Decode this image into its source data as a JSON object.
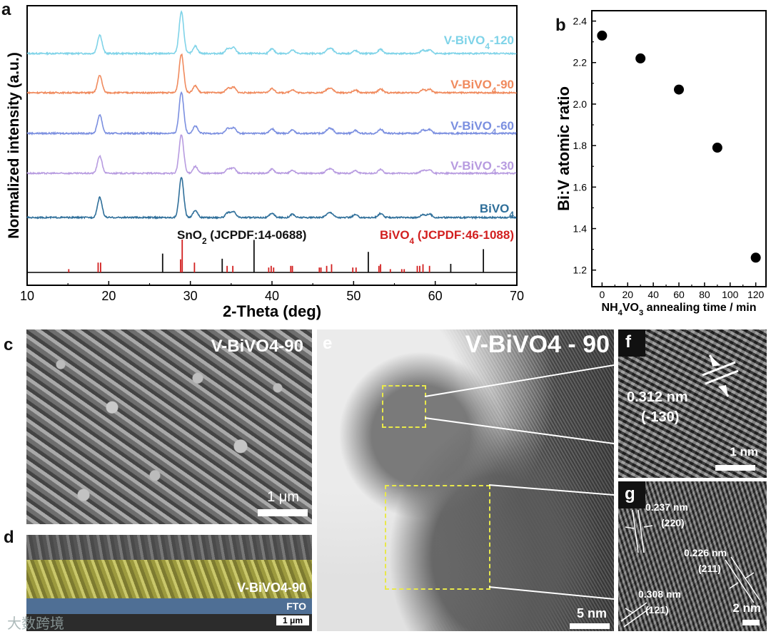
{
  "panels": {
    "a": "a",
    "b": "b",
    "c": "c",
    "d": "d",
    "e": "e",
    "f": "f",
    "g": "g"
  },
  "chart_data": [
    {
      "type": "line",
      "panel": "a",
      "xlabel": "2-Theta (deg)",
      "ylabel": "Normalized intensity (a.u.)",
      "xlim": [
        10,
        70
      ],
      "xticks": [
        "10",
        "20",
        "30",
        "40",
        "50",
        "60",
        "70"
      ],
      "series": [
        {
          "name": "V-BiVO4-120",
          "color": "#7fd3e8",
          "peaks": [
            [
              18.9,
              0.45
            ],
            [
              28.9,
              1.0
            ],
            [
              30.6,
              0.18
            ],
            [
              34.6,
              0.12
            ],
            [
              35.3,
              0.14
            ],
            [
              40.0,
              0.11
            ],
            [
              42.5,
              0.08
            ],
            [
              46.8,
              0.08
            ],
            [
              47.3,
              0.1
            ],
            [
              50.2,
              0.07
            ],
            [
              53.3,
              0.1
            ],
            [
              58.5,
              0.08
            ],
            [
              59.3,
              0.09
            ]
          ]
        },
        {
          "name": "V-BiVO4-90",
          "color": "#f08a5d",
          "peaks": [
            [
              18.9,
              0.45
            ],
            [
              28.9,
              1.0
            ],
            [
              30.6,
              0.18
            ],
            [
              34.6,
              0.12
            ],
            [
              35.3,
              0.14
            ],
            [
              40.0,
              0.11
            ],
            [
              42.5,
              0.08
            ],
            [
              46.8,
              0.08
            ],
            [
              47.3,
              0.1
            ],
            [
              50.2,
              0.07
            ],
            [
              53.3,
              0.1
            ],
            [
              58.5,
              0.08
            ],
            [
              59.3,
              0.09
            ]
          ]
        },
        {
          "name": "V-BiVO4-60",
          "color": "#7b8fe0",
          "peaks": [
            [
              18.9,
              0.45
            ],
            [
              28.9,
              1.0
            ],
            [
              30.6,
              0.18
            ],
            [
              34.6,
              0.12
            ],
            [
              35.3,
              0.14
            ],
            [
              40.0,
              0.11
            ],
            [
              42.5,
              0.08
            ],
            [
              46.8,
              0.08
            ],
            [
              47.3,
              0.1
            ],
            [
              50.2,
              0.07
            ],
            [
              53.3,
              0.1
            ],
            [
              58.5,
              0.08
            ],
            [
              59.3,
              0.09
            ]
          ]
        },
        {
          "name": "V-BiVO4-30",
          "color": "#b79be0",
          "peaks": [
            [
              18.9,
              0.45
            ],
            [
              28.9,
              1.0
            ],
            [
              30.6,
              0.18
            ],
            [
              34.6,
              0.12
            ],
            [
              35.3,
              0.14
            ],
            [
              40.0,
              0.11
            ],
            [
              42.5,
              0.08
            ],
            [
              46.8,
              0.08
            ],
            [
              47.3,
              0.1
            ],
            [
              50.2,
              0.07
            ],
            [
              53.3,
              0.1
            ],
            [
              58.5,
              0.08
            ],
            [
              59.3,
              0.09
            ]
          ]
        },
        {
          "name": "BiVO4",
          "color": "#2f6f9a",
          "peaks": [
            [
              18.9,
              0.5
            ],
            [
              28.9,
              1.0
            ],
            [
              30.6,
              0.18
            ],
            [
              34.6,
              0.12
            ],
            [
              35.3,
              0.14
            ],
            [
              40.0,
              0.11
            ],
            [
              42.5,
              0.08
            ],
            [
              46.8,
              0.08
            ],
            [
              47.3,
              0.1
            ],
            [
              50.2,
              0.07
            ],
            [
              53.3,
              0.1
            ],
            [
              58.5,
              0.08
            ],
            [
              59.3,
              0.09
            ]
          ]
        }
      ],
      "references": [
        {
          "name": "SnO2 (JCPDF:14-0688)",
          "color": "#111111",
          "lines": [
            [
              26.6,
              0.55
            ],
            [
              33.9,
              0.4
            ],
            [
              37.8,
              0.95
            ],
            [
              51.8,
              0.6
            ],
            [
              61.9,
              0.25
            ],
            [
              65.9,
              0.68
            ]
          ]
        },
        {
          "name": "BiVO4 (JCPDF:46-1088)",
          "color": "#d21f1f",
          "lines": [
            [
              15.1,
              0.1
            ],
            [
              18.7,
              0.3
            ],
            [
              19.0,
              0.3
            ],
            [
              28.8,
              0.4
            ],
            [
              29.0,
              1.0
            ],
            [
              30.5,
              0.3
            ],
            [
              34.5,
              0.2
            ],
            [
              35.2,
              0.2
            ],
            [
              39.6,
              0.15
            ],
            [
              39.9,
              0.2
            ],
            [
              40.2,
              0.15
            ],
            [
              42.3,
              0.2
            ],
            [
              42.5,
              0.2
            ],
            [
              45.8,
              0.15
            ],
            [
              46.0,
              0.15
            ],
            [
              46.7,
              0.2
            ],
            [
              47.3,
              0.25
            ],
            [
              49.9,
              0.15
            ],
            [
              50.3,
              0.15
            ],
            [
              53.1,
              0.2
            ],
            [
              53.3,
              0.25
            ],
            [
              54.5,
              0.1
            ],
            [
              55.9,
              0.1
            ],
            [
              56.2,
              0.1
            ],
            [
              57.8,
              0.2
            ],
            [
              58.1,
              0.2
            ],
            [
              58.5,
              0.25
            ],
            [
              59.3,
              0.2
            ]
          ]
        }
      ]
    },
    {
      "type": "scatter",
      "panel": "b",
      "xlabel": "NH4VO3 annealing time / min",
      "ylabel": "Bi:V atomic ratio",
      "xlim": [
        -8,
        128
      ],
      "ylim": [
        1.12,
        2.45
      ],
      "xticks": [
        "0",
        "20",
        "40",
        "60",
        "80",
        "100",
        "120"
      ],
      "yticks": [
        "1.2",
        "1.4",
        "1.6",
        "1.8",
        "2.0",
        "2.2",
        "2.4"
      ],
      "x": [
        0,
        30,
        60,
        90,
        120
      ],
      "y": [
        2.33,
        2.22,
        2.07,
        1.79,
        1.26
      ]
    }
  ],
  "micro": {
    "c_title": "V-BiVO4-90",
    "c_scale": "1 μm",
    "d_layer": "V-BiVO4-90",
    "d_fto": "FTO",
    "d_scale": "1 μm",
    "e_title": "V-BiVO4 - 90",
    "e_scale": "5 nm",
    "f_d": "0.312 nm",
    "f_hkl": "(-130)",
    "f_scale": "1 nm",
    "g_d1": "0.237 nm",
    "g_hkl1": "(220)",
    "g_d2": "0.226 nm",
    "g_hkl2": "(211)",
    "g_d3": "0.308 nm",
    "g_hkl3": "(121)",
    "g_scale": "2 nm"
  },
  "watermark": "大数跨境"
}
